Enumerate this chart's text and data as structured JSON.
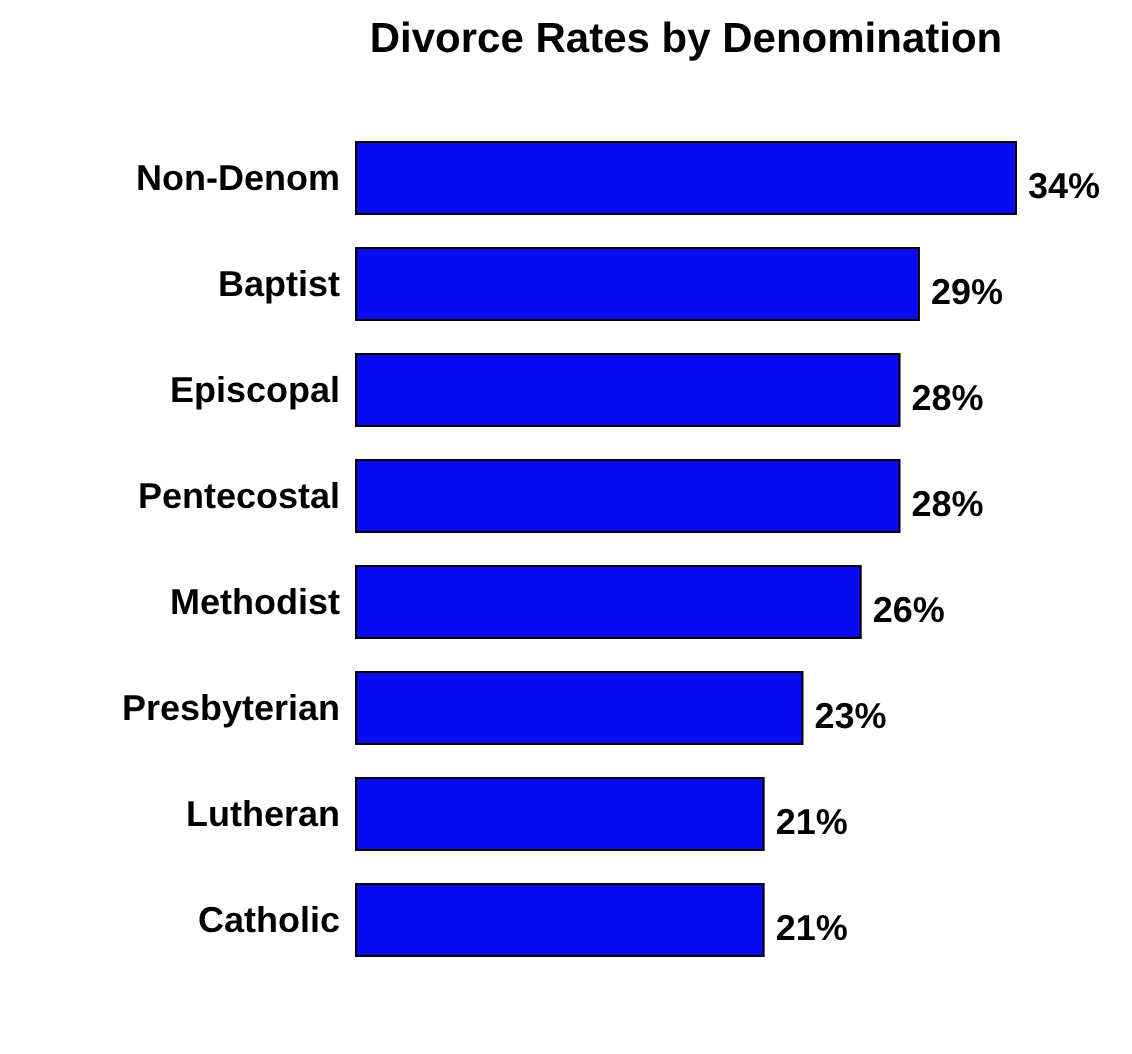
{
  "chart_data": {
    "type": "bar",
    "title": "Divorce Rates by Denomination",
    "orientation": "horizontal",
    "categories": [
      "Non-Denom",
      "Baptist",
      "Episcopal",
      "Pentecostal",
      "Methodist",
      "Presbyterian",
      "Lutheran",
      "Catholic"
    ],
    "values": [
      34,
      29,
      28,
      28,
      26,
      23,
      21,
      21
    ],
    "value_labels": [
      "34%",
      "29%",
      "28%",
      "28%",
      "26%",
      "23%",
      "21%",
      "21%"
    ],
    "color": "#0a0af0"
  }
}
